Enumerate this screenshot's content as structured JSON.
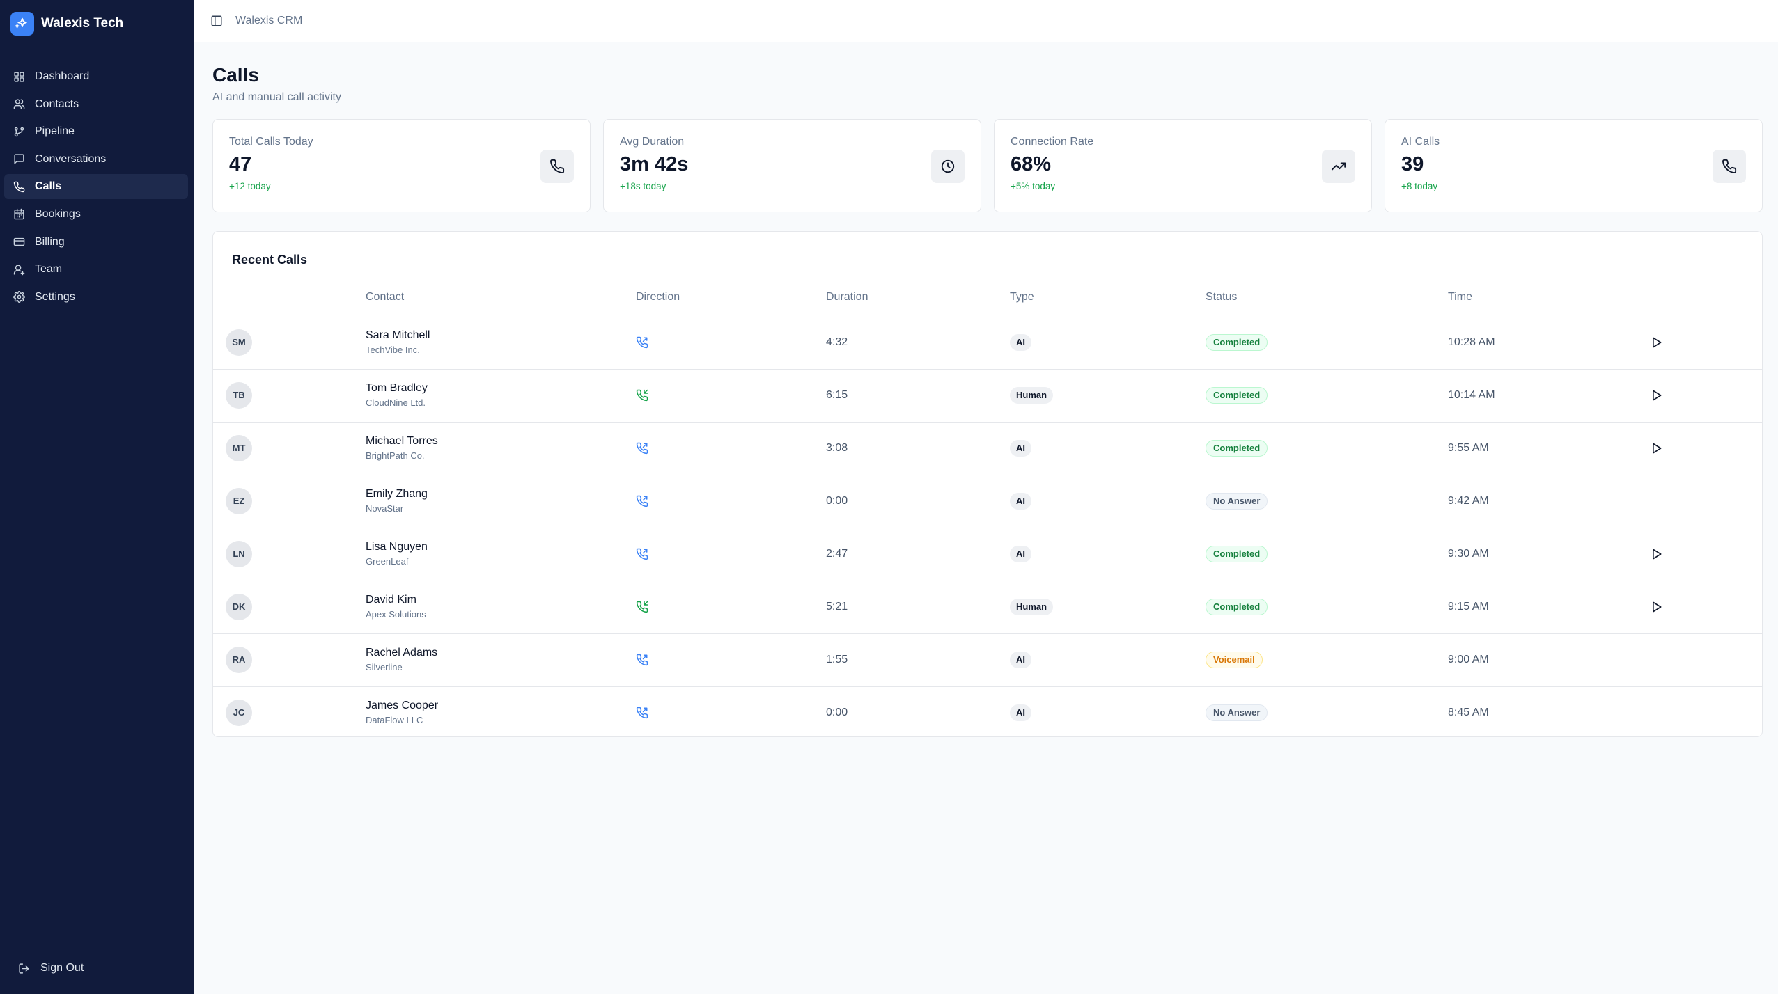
{
  "brand": {
    "name": "Walexis Tech"
  },
  "sidebar": {
    "items": [
      {
        "label": "Dashboard",
        "icon": "dashboard-icon"
      },
      {
        "label": "Contacts",
        "icon": "contacts-icon"
      },
      {
        "label": "Pipeline",
        "icon": "pipeline-icon"
      },
      {
        "label": "Conversations",
        "icon": "conversations-icon"
      },
      {
        "label": "Calls",
        "icon": "phone-icon",
        "active": true
      },
      {
        "label": "Bookings",
        "icon": "calendar-icon"
      },
      {
        "label": "Billing",
        "icon": "credit-card-icon"
      },
      {
        "label": "Team",
        "icon": "team-icon"
      },
      {
        "label": "Settings",
        "icon": "gear-icon"
      }
    ],
    "sign_out": "Sign Out"
  },
  "topbar": {
    "breadcrumb": "Walexis CRM"
  },
  "page": {
    "title": "Calls",
    "subtitle": "AI and manual call activity"
  },
  "stats": [
    {
      "label": "Total Calls Today",
      "value": "47",
      "delta": "+12 today",
      "icon": "phone-icon"
    },
    {
      "label": "Avg Duration",
      "value": "3m 42s",
      "delta": "+18s today",
      "icon": "clock-icon"
    },
    {
      "label": "Connection Rate",
      "value": "68%",
      "delta": "+5% today",
      "icon": "trending-up-icon"
    },
    {
      "label": "AI Calls",
      "value": "39",
      "delta": "+8 today",
      "icon": "phone-icon"
    }
  ],
  "recent_calls": {
    "title": "Recent Calls",
    "columns": [
      "Contact",
      "Direction",
      "Duration",
      "Type",
      "Status",
      "Time"
    ],
    "rows": [
      {
        "initials": "SM",
        "name": "Sara Mitchell",
        "company": "TechVibe Inc.",
        "direction": "outgoing",
        "duration": "4:32",
        "type": "AI",
        "status": "Completed",
        "time": "10:28 AM",
        "playable": true
      },
      {
        "initials": "TB",
        "name": "Tom Bradley",
        "company": "CloudNine Ltd.",
        "direction": "incoming",
        "duration": "6:15",
        "type": "Human",
        "status": "Completed",
        "time": "10:14 AM",
        "playable": true
      },
      {
        "initials": "MT",
        "name": "Michael Torres",
        "company": "BrightPath Co.",
        "direction": "outgoing",
        "duration": "3:08",
        "type": "AI",
        "status": "Completed",
        "time": "9:55 AM",
        "playable": true
      },
      {
        "initials": "EZ",
        "name": "Emily Zhang",
        "company": "NovaStar",
        "direction": "outgoing",
        "duration": "0:00",
        "type": "AI",
        "status": "No Answer",
        "time": "9:42 AM",
        "playable": false
      },
      {
        "initials": "LN",
        "name": "Lisa Nguyen",
        "company": "GreenLeaf",
        "direction": "outgoing",
        "duration": "2:47",
        "type": "AI",
        "status": "Completed",
        "time": "9:30 AM",
        "playable": true
      },
      {
        "initials": "DK",
        "name": "David Kim",
        "company": "Apex Solutions",
        "direction": "incoming",
        "duration": "5:21",
        "type": "Human",
        "status": "Completed",
        "time": "9:15 AM",
        "playable": true
      },
      {
        "initials": "RA",
        "name": "Rachel Adams",
        "company": "Silverline",
        "direction": "outgoing",
        "duration": "1:55",
        "type": "AI",
        "status": "Voicemail",
        "time": "9:00 AM",
        "playable": false
      },
      {
        "initials": "JC",
        "name": "James Cooper",
        "company": "DataFlow LLC",
        "direction": "outgoing",
        "duration": "0:00",
        "type": "AI",
        "status": "No Answer",
        "time": "8:45 AM",
        "playable": false
      }
    ]
  },
  "colors": {
    "sidebar_bg": "#111b3c",
    "accent": "#3b82f6",
    "positive": "#16a34a",
    "outgoing_icon": "#3b82f6",
    "incoming_icon": "#16a34a",
    "voicemail": "#d97706"
  }
}
